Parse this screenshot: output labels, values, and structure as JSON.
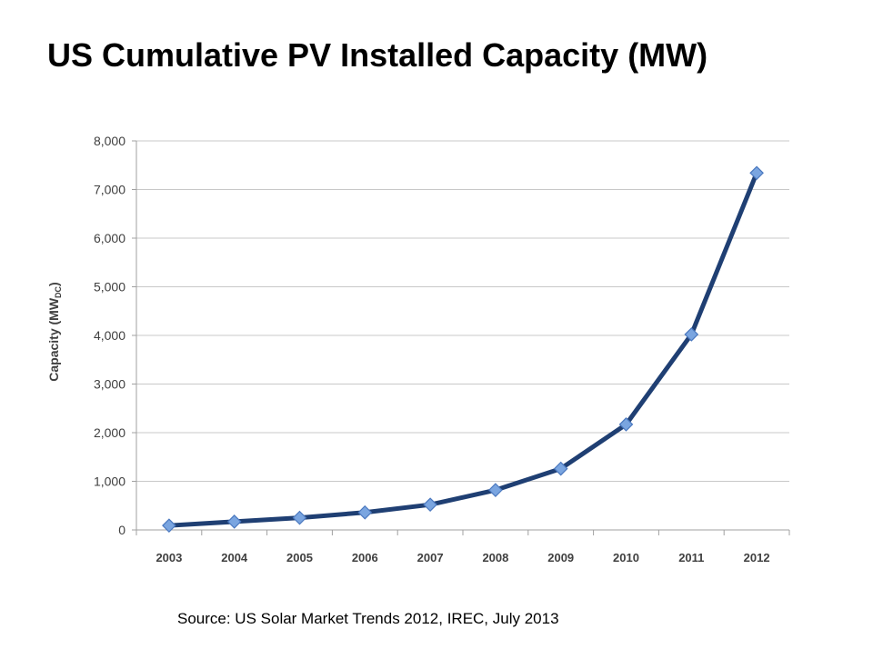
{
  "slide": {
    "title": "US Cumulative PV Installed Capacity (MW)",
    "source": "Source: US Solar Market Trends 2012, IREC, July 2013"
  },
  "colors": {
    "line": "#1f3f73",
    "marker_fill": "#7aa5e0",
    "marker_stroke": "#4a78bf",
    "grid": "#c8c8c8",
    "axis": "#a0a0a0",
    "tick_text": "#404040"
  },
  "chart_data": {
    "type": "line",
    "title": "",
    "ylabel_main": "Capacity (MW",
    "ylabel_sub": "DC",
    "ylabel_close": ")",
    "xlabel": "",
    "categories": [
      "2003",
      "2004",
      "2005",
      "2006",
      "2007",
      "2008",
      "2009",
      "2010",
      "2011",
      "2012"
    ],
    "series": [
      {
        "values": [
          90,
          170,
          250,
          360,
          520,
          820,
          1260,
          2170,
          4020,
          7340
        ]
      }
    ],
    "ylim": [
      0,
      8000
    ],
    "yticks": [
      0,
      1000,
      2000,
      3000,
      4000,
      5000,
      6000,
      7000,
      8000
    ],
    "ytick_labels": [
      "0",
      "1,000",
      "2,000",
      "3,000",
      "4,000",
      "5,000",
      "6,000",
      "7,000",
      "8,000"
    ],
    "grid": true,
    "legend": "none"
  }
}
